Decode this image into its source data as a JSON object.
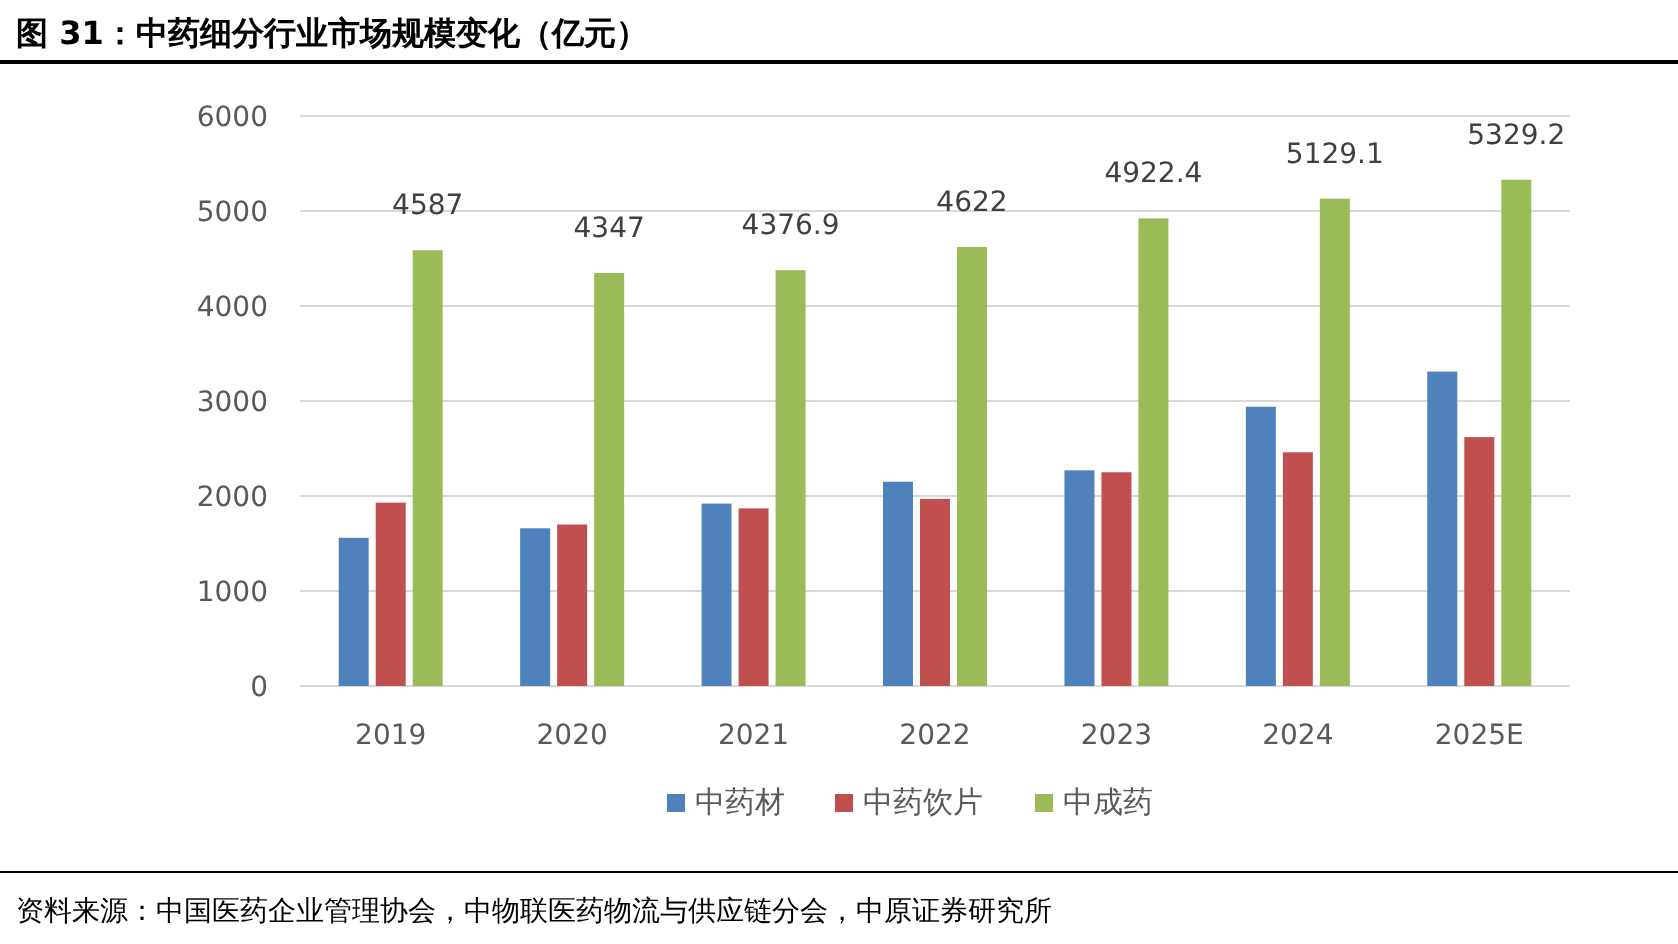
{
  "chart_data": {
    "type": "bar",
    "title": "图 31：中药细分行业市场规模变化（亿元）",
    "categories": [
      "2019",
      "2020",
      "2021",
      "2022",
      "2023",
      "2024",
      "2025E"
    ],
    "series": [
      {
        "name": "中药材",
        "color": "#4f81bd",
        "values": [
          1560,
          1660,
          1920,
          2150,
          2270,
          2940,
          3310
        ]
      },
      {
        "name": "中药饮片",
        "color": "#c0504d",
        "values": [
          1930,
          1700,
          1870,
          1970,
          2250,
          2460,
          2620
        ]
      },
      {
        "name": "中成药",
        "color": "#9bbb59",
        "values": [
          4587,
          4347,
          4376.9,
          4622,
          4922.4,
          5129.1,
          5329.2
        ],
        "value_labels": [
          "4587",
          "4347",
          "4376.9",
          "4622",
          "4922.4",
          "5129.1",
          "5329.2"
        ]
      }
    ],
    "ylim": [
      0,
      6000
    ],
    "yticks": [
      0,
      1000,
      2000,
      3000,
      4000,
      5000,
      6000
    ],
    "grid": "y",
    "legend": "bottom",
    "annotations": [
      "资料来源：中国医药企业管理协会，中物联医药物流与供应链分会，中原证券研究所"
    ]
  }
}
